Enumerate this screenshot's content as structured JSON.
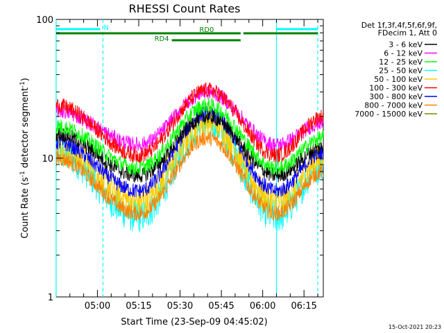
{
  "chart_data": {
    "type": "line",
    "title": "RHESSI Count Rates",
    "xlabel": "Start Time (23-Sep-09 04:45:02)",
    "ylabel_main": "Count Rate (s",
    "ylabel_exp1": "-1",
    "ylabel_mid": " detector segment",
    "ylabel_exp2": "-1",
    "ylabel_end": ")",
    "yscale": "log",
    "ylim": [
      1,
      100
    ],
    "xlim": [
      "04:45:02",
      "06:22:00"
    ],
    "y_ticks": [
      "1",
      "10",
      "100"
    ],
    "x_ticks": [
      "05:00",
      "05:15",
      "05:30",
      "05:45",
      "06:00",
      "06:15"
    ],
    "legend_header": [
      "Det 1f,3f,4f,5f,6f,9f,",
      "FDecim 1, Att 0"
    ],
    "series": [
      {
        "name": "3 - 6 keV",
        "color": "#000000",
        "x": [
          "04:45",
          "05:15",
          "05:40",
          "06:05",
          "06:22"
        ],
        "values": [
          15,
          7.5,
          20,
          7.5,
          12
        ]
      },
      {
        "name": "6 - 12 keV",
        "color": "#ff00ff",
        "x": [
          "04:45",
          "05:15",
          "05:40",
          "06:05",
          "06:22"
        ],
        "values": [
          22,
          12.5,
          30,
          12.5,
          18
        ]
      },
      {
        "name": "12 - 25 keV",
        "color": "#00ff00",
        "x": [
          "04:45",
          "05:15",
          "05:40",
          "06:05",
          "06:22"
        ],
        "values": [
          17,
          8.5,
          24,
          8.5,
          14
        ]
      },
      {
        "name": "25 - 50 keV",
        "color": "#00ffff",
        "x": [
          "04:45",
          "05:15",
          "05:40",
          "06:05",
          "06:22"
        ],
        "values": [
          11,
          3.8,
          18,
          3.8,
          9
        ]
      },
      {
        "name": "50 - 100 keV",
        "color": "#ffcc00",
        "x": [
          "04:45",
          "05:15",
          "05:40",
          "06:05",
          "06:22"
        ],
        "values": [
          12,
          4.8,
          19,
          4.8,
          10
        ]
      },
      {
        "name": "100 - 300 keV",
        "color": "#ff0000",
        "x": [
          "04:45",
          "05:15",
          "05:40",
          "06:05",
          "06:22"
        ],
        "values": [
          24,
          10.5,
          31,
          10.5,
          20
        ]
      },
      {
        "name": "300 - 800 keV",
        "color": "#0000ff",
        "x": [
          "04:45",
          "05:15",
          "05:40",
          "06:05",
          "06:22"
        ],
        "values": [
          13,
          5.8,
          21,
          5.8,
          11
        ]
      },
      {
        "name": "800 - 7000 keV",
        "color": "#ff8000",
        "x": [
          "04:45",
          "05:15",
          "05:40",
          "06:05",
          "06:22"
        ],
        "values": [
          10,
          4.0,
          14,
          4.0,
          8
        ]
      },
      {
        "name": "7000 - 15000 keV",
        "color": "#808000",
        "x": [
          "04:45",
          "05:15",
          "05:40",
          "06:05",
          "06:22"
        ],
        "values": [
          0,
          0,
          0,
          0,
          0
        ]
      }
    ],
    "attenuator_bars": [
      {
        "label": "N",
        "color": "#00ffff",
        "segments": [
          [
            "04:45",
            "05:01"
          ],
          [
            "06:05",
            "06:20"
          ]
        ]
      },
      {
        "label": "RD0",
        "color": "#008000",
        "segments": [
          [
            "04:45",
            "05:52"
          ],
          [
            "05:53",
            "06:20"
          ]
        ]
      },
      {
        "label": "RD4",
        "color": "#008000",
        "segments": [
          [
            "05:27",
            "05:52"
          ]
        ]
      }
    ],
    "vertical_markers": [
      {
        "time": "04:45",
        "style": "solid",
        "color": "#00ffff"
      },
      {
        "time": "05:02",
        "style": "dashed",
        "color": "#00ffff"
      },
      {
        "time": "06:05",
        "style": "solid",
        "color": "#00ffff"
      },
      {
        "time": "06:20",
        "style": "dashed",
        "color": "#00ffff"
      }
    ],
    "footer_timestamp": "15-Oct-2021 20:23"
  }
}
